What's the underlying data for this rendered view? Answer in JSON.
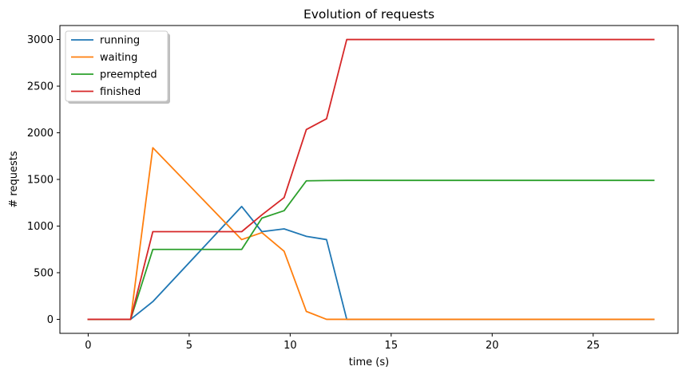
{
  "chart_data": {
    "type": "line",
    "title": "Evolution of requests",
    "xlabel": "time (s)",
    "ylabel": "# requests",
    "xlim": [
      -1.4,
      29.2
    ],
    "ylim": [
      -150,
      3150
    ],
    "xticks": [
      0,
      5,
      10,
      15,
      20,
      25
    ],
    "yticks": [
      0,
      500,
      1000,
      1500,
      2000,
      2500,
      3000
    ],
    "xtick_labels": [
      "0",
      "5",
      "10",
      "15",
      "20",
      "25"
    ],
    "ytick_labels": [
      "0",
      "500",
      "1000",
      "1500",
      "2000",
      "2500",
      "3000"
    ],
    "legend_position": "top-left",
    "grid": false,
    "x": [
      0,
      1.1,
      2.1,
      3.2,
      7.6,
      8.6,
      9.7,
      10.8,
      11.8,
      12.8,
      28
    ],
    "series": [
      {
        "name": "running",
        "color": "#1f77b4",
        "values": [
          0,
          0,
          0,
          190,
          1210,
          940,
          970,
          890,
          855,
          0,
          0
        ]
      },
      {
        "name": "waiting",
        "color": "#ff7f0e",
        "values": [
          0,
          0,
          0,
          1840,
          855,
          930,
          730,
          85,
          0,
          0,
          0
        ]
      },
      {
        "name": "preempted",
        "color": "#2ca02c",
        "values": [
          0,
          0,
          0,
          750,
          750,
          1085,
          1165,
          1485,
          1488,
          1490,
          1490
        ]
      },
      {
        "name": "finished",
        "color": "#d62728",
        "values": [
          0,
          0,
          0,
          940,
          940,
          1120,
          1305,
          2035,
          2150,
          3000,
          3000
        ]
      }
    ]
  }
}
